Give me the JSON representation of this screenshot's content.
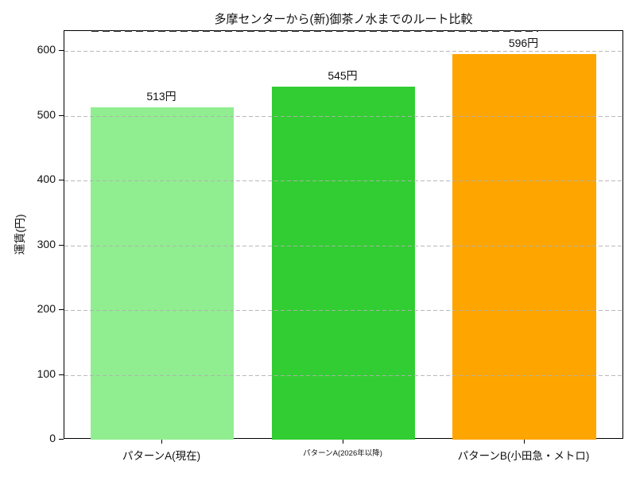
{
  "title": "多摩センターから(新)御茶ノ水までのルート比較",
  "chart_data": {
    "type": "bar",
    "title": "多摩センターから(新)御茶ノ水までのルート比較",
    "categories": [
      "パターンA(現在)",
      "パターンA(2026年以降)",
      "パターンB(小田急・メトロ)"
    ],
    "values": [
      513,
      545,
      596
    ],
    "bar_labels": [
      "513円",
      "545円",
      "596円"
    ],
    "bar_colors": [
      "#90EE90",
      "#32CD32",
      "#FFA500"
    ],
    "xlabel": "",
    "ylabel": "運賃(円)",
    "yticks": [
      0,
      100,
      200,
      300,
      400,
      500,
      600
    ],
    "ytick_labels": [
      "0",
      "100",
      "200",
      "300",
      "400",
      "500",
      "600"
    ],
    "ylim": [
      0,
      631
    ],
    "grid": "y-axis, dashed gray, drawn over bars",
    "legend": "none",
    "category_font_px": [
      13.5,
      9.5,
      13.5
    ],
    "top_dashed_line": true
  }
}
